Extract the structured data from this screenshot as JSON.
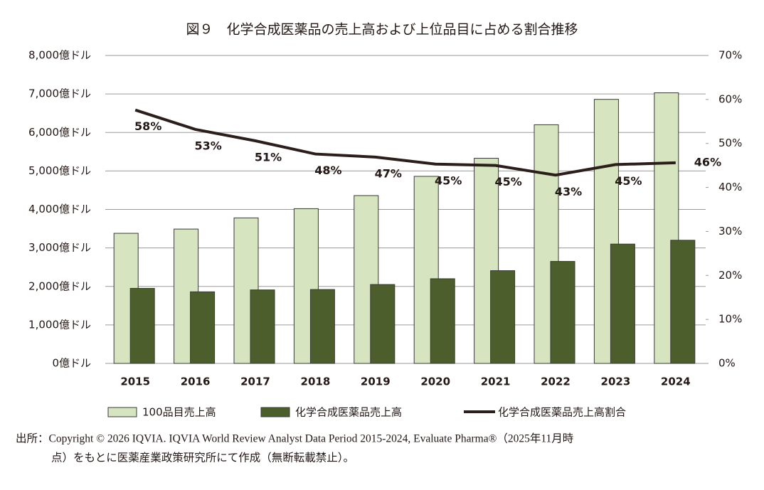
{
  "chart_data": {
    "type": "bar",
    "title": "図９　化学合成医薬品の売上高および上位品目に占める割合推移",
    "categories": [
      "2015",
      "2016",
      "2017",
      "2018",
      "2019",
      "2020",
      "2021",
      "2022",
      "2023",
      "2024"
    ],
    "series": [
      {
        "name": "100品目売上高",
        "color": "#d6e5bf",
        "values": [
          3380,
          3490,
          3780,
          4020,
          4360,
          4860,
          5330,
          6200,
          6860,
          7030
        ]
      },
      {
        "name": "化学合成医薬品売上高",
        "color": "#4b5e2b",
        "values": [
          1950,
          1860,
          1910,
          1920,
          2050,
          2200,
          2410,
          2650,
          3100,
          3200
        ]
      },
      {
        "name": "化学合成医薬品売上高割合",
        "color": "#2b1e1b",
        "type": "line",
        "axis": "y2",
        "values": [
          57.6,
          53.2,
          50.6,
          47.6,
          46.9,
          45.3,
          45.0,
          42.8,
          45.2,
          45.6
        ],
        "value_labels": [
          "58%",
          "53%",
          "51%",
          "48%",
          "47%",
          "45%",
          "45%",
          "43%",
          "45%",
          "46%"
        ]
      }
    ],
    "ylim": [
      0,
      8000
    ],
    "yticks": [
      {
        "value": 0,
        "label": "0億ドル"
      },
      {
        "value": 1000,
        "label": "1,000億ドル"
      },
      {
        "value": 2000,
        "label": "2,000億ドル"
      },
      {
        "value": 3000,
        "label": "3,000億ドル"
      },
      {
        "value": 4000,
        "label": "4,000億ドル"
      },
      {
        "value": 5000,
        "label": "5,000億ドル"
      },
      {
        "value": 6000,
        "label": "6,000億ドル"
      },
      {
        "value": 7000,
        "label": "7,000億ドル"
      },
      {
        "value": 8000,
        "label": "8,000億ドル"
      }
    ],
    "y2lim": [
      0,
      70
    ],
    "y2ticks": [
      {
        "value": 0,
        "label": "0%"
      },
      {
        "value": 10,
        "label": "10%"
      },
      {
        "value": 20,
        "label": "20%"
      },
      {
        "value": 30,
        "label": "30%"
      },
      {
        "value": 40,
        "label": "40%"
      },
      {
        "value": 50,
        "label": "50%"
      },
      {
        "value": 60,
        "label": "60%"
      },
      {
        "value": 70,
        "label": "70%"
      }
    ],
    "grid": true,
    "legend": "bottom",
    "source": [
      "出所：Copyright © 2026 IQVIA. IQVIA World Review Analyst Data Period 2015-2024, Evaluate Pharma®（2025年11月時",
      "点）をもとに医薬産業政策研究所にて作成（無断転載禁止）。"
    ]
  }
}
